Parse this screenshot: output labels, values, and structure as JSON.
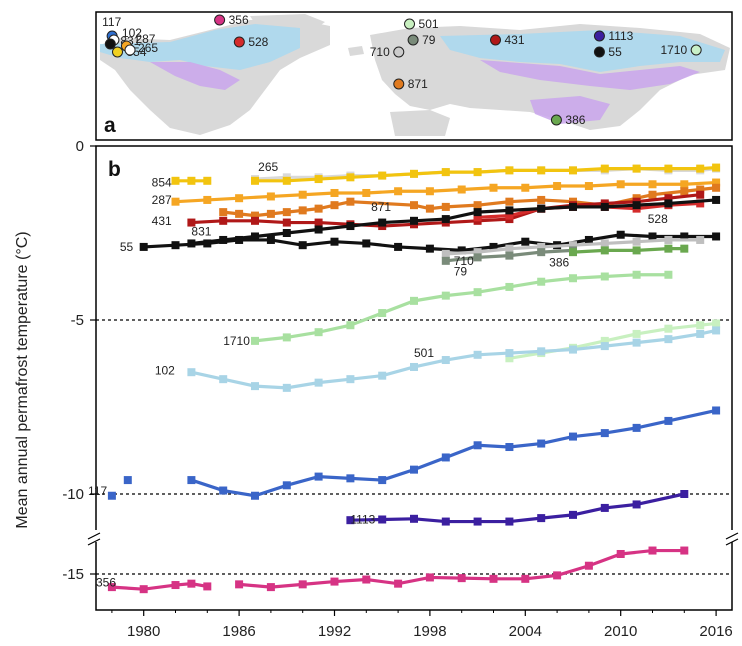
{
  "panel_a": {
    "letter": "a",
    "sites": [
      {
        "id": "117",
        "color": "#2f6fd0",
        "lon": -156,
        "lat": 72
      },
      {
        "id": "102",
        "color": "#ffffff",
        "lon": -155,
        "lat": 70
      },
      {
        "id": "831",
        "color": "#111111",
        "lon": -157,
        "lat": 68
      },
      {
        "id": "287",
        "color": "#f5a623",
        "lon": -148,
        "lat": 67
      },
      {
        "id": "854",
        "color": "#f0d020",
        "lon": -153,
        "lat": 64
      },
      {
        "id": "265",
        "color": "#ffffff",
        "lon": -146,
        "lat": 65
      },
      {
        "id": "356",
        "color": "#d63384",
        "lon": -96,
        "lat": 80
      },
      {
        "id": "528",
        "color": "#d42b2b",
        "lon": -85,
        "lat": 69
      },
      {
        "id": "501",
        "color": "#c8f0c0",
        "lon": 10,
        "lat": 78
      },
      {
        "id": "79",
        "color": "#7a8b7a",
        "lon": 12,
        "lat": 70
      },
      {
        "id": "710",
        "color": "#cccccc",
        "lon": 4,
        "lat": 64
      },
      {
        "id": "871",
        "color": "#e07a1f",
        "lon": 4,
        "lat": 48
      },
      {
        "id": "431",
        "color": "#b01818",
        "lon": 58,
        "lat": 70
      },
      {
        "id": "1113",
        "color": "#3b1fa0",
        "lon": 116,
        "lat": 72
      },
      {
        "id": "55",
        "color": "#111111",
        "lon": 116,
        "lat": 64
      },
      {
        "id": "1710",
        "color": "#c8f0c8",
        "lon": 170,
        "lat": 65
      },
      {
        "id": "386",
        "color": "#6aa84f",
        "lon": 92,
        "lat": 30
      }
    ]
  },
  "panel_b": {
    "letter": "b",
    "ylabel": "Mean annual permafrost temperature (°C)",
    "x_ticks": [
      "1980",
      "1986",
      "1992",
      "1998",
      "2004",
      "2010",
      "2016"
    ],
    "y_ticks": [
      "0",
      "-5",
      "-10",
      "-15"
    ],
    "series_labels": [
      {
        "text": "265",
        "x": 1987.2,
        "y": -0.6
      },
      {
        "text": "854",
        "x": 1980.5,
        "y": -1.05
      },
      {
        "text": "287",
        "x": 1980.5,
        "y": -1.55
      },
      {
        "text": "871",
        "x": 1994.3,
        "y": -1.75
      },
      {
        "text": "431",
        "x": 1980.5,
        "y": -2.15
      },
      {
        "text": "831",
        "x": 1983.0,
        "y": -2.45
      },
      {
        "text": "55",
        "x": 1978.5,
        "y": -2.9
      },
      {
        "text": "528",
        "x": 2011.7,
        "y": -2.1
      },
      {
        "text": "710",
        "x": 1999.5,
        "y": -3.3
      },
      {
        "text": "79",
        "x": 1999.5,
        "y": -3.6
      },
      {
        "text": "386",
        "x": 2005.5,
        "y": -3.35
      },
      {
        "text": "1710",
        "x": 1985.0,
        "y": -5.6
      },
      {
        "text": "501",
        "x": 1997.0,
        "y": -5.95
      },
      {
        "text": "102",
        "x": 1980.7,
        "y": -6.45
      },
      {
        "text": "117",
        "x": 1976.5,
        "y": -9.92
      },
      {
        "text": "1113",
        "x": 1993.0,
        "y": -11.05
      },
      {
        "text": "356",
        "x": 1977.0,
        "y": -15.6
      }
    ]
  },
  "chart_data": {
    "type": "line",
    "xlabel": "",
    "ylabel": "Mean annual permafrost temperature (°C)",
    "xlim": [
      1977,
      2017
    ],
    "ylim": [
      -16.8,
      0
    ],
    "y_axis_break": [
      -10.5,
      -11.5
    ],
    "x_ticks": [
      1980,
      1986,
      1992,
      1998,
      2004,
      2010,
      2016
    ],
    "y_ticks": [
      0,
      -5,
      -10,
      -15
    ],
    "reference_lines": [
      -5,
      -10,
      -15
    ],
    "series": [
      {
        "name": "265",
        "color": "#d9d9d9",
        "x": [
          1987,
          1989,
          1991,
          1993,
          1995,
          1997,
          1999,
          2001,
          2003,
          2005,
          2007,
          2009,
          2011,
          2013,
          2015,
          2016
        ],
        "y": [
          -0.95,
          -0.9,
          -0.9,
          -0.85,
          -0.85,
          -0.8,
          -0.75,
          -0.75,
          -0.7,
          -0.7,
          -0.7,
          -0.7,
          -0.65,
          -0.7,
          -0.7,
          -0.65
        ]
      },
      {
        "name": "854-a",
        "color": "#f2c40f",
        "x": [
          1982,
          1983,
          1984
        ],
        "y": [
          -1.0,
          -1.0,
          -1.0
        ]
      },
      {
        "name": "854-b",
        "color": "#f2c40f",
        "x": [
          1987,
          1989,
          1991,
          1993,
          1995,
          1997,
          1999,
          2001,
          2003,
          2005,
          2007,
          2009,
          2011,
          2013,
          2015,
          2016
        ],
        "y": [
          -1.0,
          -1.0,
          -0.95,
          -0.9,
          -0.85,
          -0.8,
          -0.75,
          -0.75,
          -0.7,
          -0.7,
          -0.7,
          -0.65,
          -0.65,
          -0.65,
          -0.65,
          -0.62
        ]
      },
      {
        "name": "287",
        "color": "#f5a623",
        "x": [
          1982,
          1984,
          1986,
          1988,
          1990,
          1992,
          1994,
          1996,
          1998,
          2000,
          2002,
          2004,
          2006,
          2008,
          2010,
          2012,
          2014,
          2016
        ],
        "y": [
          -1.6,
          -1.55,
          -1.5,
          -1.45,
          -1.4,
          -1.35,
          -1.35,
          -1.3,
          -1.3,
          -1.25,
          -1.2,
          -1.2,
          -1.15,
          -1.15,
          -1.1,
          -1.1,
          -1.1,
          -1.05
        ]
      },
      {
        "name": "871",
        "color": "#e07a1f",
        "x": [
          1985,
          1986,
          1987,
          1988,
          1989,
          1990,
          1991,
          1992,
          1993,
          1997,
          1998,
          1999,
          2001,
          2003,
          2005,
          2007,
          2009,
          2011,
          2012,
          2014,
          2015,
          2016
        ],
        "y": [
          -1.9,
          -1.95,
          -2.0,
          -1.95,
          -1.9,
          -1.85,
          -1.8,
          -1.7,
          -1.6,
          -1.7,
          -1.8,
          -1.75,
          -1.7,
          -1.6,
          -1.55,
          -1.6,
          -1.7,
          -1.5,
          -1.4,
          -1.3,
          -1.25,
          -1.2
        ]
      },
      {
        "name": "431",
        "color": "#b01818",
        "x": [
          1983,
          1985,
          1987,
          1989,
          1991,
          1993,
          1995,
          1997,
          1999,
          2001,
          2003,
          2005,
          2007,
          2009,
          2011,
          2013,
          2015
        ],
        "y": [
          -2.2,
          -2.15,
          -2.15,
          -2.2,
          -2.2,
          -2.25,
          -2.3,
          -2.25,
          -2.2,
          -2.15,
          -2.1,
          -1.8,
          -1.7,
          -1.65,
          -1.6,
          -1.5,
          -1.4
        ]
      },
      {
        "name": "528",
        "color": "#d42b2b",
        "x": [
          2001,
          2003,
          2005,
          2007,
          2009,
          2011,
          2013,
          2015
        ],
        "y": [
          -2.05,
          -2.0,
          -1.8,
          -1.75,
          -1.75,
          -1.8,
          -1.7,
          -1.65
        ]
      },
      {
        "name": "831",
        "color": "#111111",
        "x": [
          1983,
          1985,
          1987,
          1989,
          1991,
          1993,
          1995,
          1997,
          1999,
          2001,
          2003,
          2005,
          2007,
          2009,
          2011,
          2013,
          2016
        ],
        "y": [
          -2.8,
          -2.7,
          -2.6,
          -2.5,
          -2.4,
          -2.3,
          -2.2,
          -2.15,
          -2.1,
          -1.9,
          -1.85,
          -1.8,
          -1.75,
          -1.75,
          -1.7,
          -1.65,
          -1.55
        ]
      },
      {
        "name": "55",
        "color": "#111111",
        "x": [
          1980,
          1982,
          1984,
          1986,
          1988,
          1990,
          1992,
          1994,
          1996,
          1998,
          2000,
          2002,
          2004,
          2006,
          2008,
          2010,
          2012,
          2014,
          2016
        ],
        "y": [
          -2.9,
          -2.85,
          -2.8,
          -2.7,
          -2.7,
          -2.85,
          -2.75,
          -2.8,
          -2.9,
          -2.95,
          -3.0,
          -2.9,
          -2.75,
          -2.85,
          -2.7,
          -2.55,
          -2.6,
          -2.6,
          -2.6
        ]
      },
      {
        "name": "710",
        "color": "#bfbfbf",
        "x": [
          1999,
          2001,
          2003,
          2005,
          2007,
          2009,
          2011,
          2013,
          2015
        ],
        "y": [
          -3.1,
          -3.05,
          -2.95,
          -2.9,
          -2.85,
          -2.8,
          -2.75,
          -2.7,
          -2.7
        ]
      },
      {
        "name": "79",
        "color": "#7a8b7a",
        "x": [
          1999,
          2001,
          2003,
          2005,
          2007
        ],
        "y": [
          -3.3,
          -3.2,
          -3.15,
          -3.05,
          -3.0
        ]
      },
      {
        "name": "386",
        "color": "#6aa84f",
        "x": [
          2007,
          2009,
          2011,
          2013,
          2014
        ],
        "y": [
          -3.05,
          -3.0,
          -3.0,
          -2.95,
          -2.95
        ]
      },
      {
        "name": "1710",
        "color": "#a8e0a0",
        "x": [
          1987,
          1989,
          1991,
          1993,
          1995,
          1997,
          1999,
          2001,
          2003,
          2005,
          2007,
          2009,
          2011,
          2013
        ],
        "y": [
          -5.6,
          -5.5,
          -5.35,
          -5.15,
          -4.8,
          -4.45,
          -4.3,
          -4.2,
          -4.05,
          -3.9,
          -3.8,
          -3.75,
          -3.7,
          -3.7
        ]
      },
      {
        "name": "501",
        "color": "#c8f0c0",
        "x": [
          2003,
          2005,
          2007,
          2009,
          2011,
          2013,
          2015,
          2016
        ],
        "y": [
          -6.1,
          -5.95,
          -5.8,
          -5.6,
          -5.4,
          -5.25,
          -5.15,
          -5.1
        ]
      },
      {
        "name": "102",
        "color": "#a8d4e6",
        "x": [
          1983,
          1985,
          1987,
          1989,
          1991,
          1993,
          1995,
          1997,
          1999,
          2001,
          2003,
          2005,
          2007,
          2009,
          2011,
          2013,
          2015,
          2016
        ],
        "y": [
          -6.5,
          -6.7,
          -6.9,
          -6.95,
          -6.8,
          -6.7,
          -6.6,
          -6.35,
          -6.15,
          -6.0,
          -5.95,
          -5.9,
          -5.85,
          -5.75,
          -5.65,
          -5.55,
          -5.4,
          -5.3
        ]
      },
      {
        "name": "117-a",
        "color": "#3a65c8",
        "x": [
          1978
        ],
        "y": [
          -10.05
        ]
      },
      {
        "name": "117-b",
        "color": "#3a65c8",
        "x": [
          1979
        ],
        "y": [
          -9.6
        ]
      },
      {
        "name": "117-c",
        "color": "#3a65c8",
        "x": [
          1983,
          1985,
          1987,
          1989,
          1991,
          1993,
          1995,
          1997,
          1999,
          2001,
          2003,
          2005,
          2007,
          2009,
          2011,
          2013,
          2016
        ],
        "y": [
          -9.6,
          -9.9,
          -10.05,
          -9.75,
          -9.5,
          -9.55,
          -9.6,
          -9.3,
          -8.95,
          -8.6,
          -8.65,
          -8.55,
          -8.35,
          -8.25,
          -8.1,
          -7.9,
          -7.6
        ]
      },
      {
        "name": "1113",
        "color": "#3b1fa0",
        "x": [
          1993,
          1995,
          1997,
          1999,
          2001,
          2003,
          2005,
          2007,
          2009,
          2011,
          2014
        ],
        "y": [
          -11.1,
          -11.05,
          -11.0,
          -11.2,
          -11.2,
          -11.2,
          -10.95,
          -10.6,
          -10.4,
          -10.3,
          -10.0
        ]
      },
      {
        "name": "356-a",
        "color": "#d63384",
        "x": [
          1978,
          1980,
          1982,
          1983,
          1984
        ],
        "y": [
          -15.95,
          -16.1,
          -15.8,
          -15.7,
          -15.9
        ]
      },
      {
        "name": "356-b",
        "color": "#d63384",
        "x": [
          1986,
          1988,
          1990,
          1992,
          1994,
          1996,
          1998,
          2000,
          2002,
          2004,
          2006,
          2008,
          2010,
          2012,
          2014
        ],
        "y": [
          -15.75,
          -15.95,
          -15.75,
          -15.55,
          -15.4,
          -15.7,
          -15.25,
          -15.3,
          -15.35,
          -15.35,
          -15.1,
          -14.4,
          -13.55,
          -13.3,
          -13.3
        ]
      }
    ]
  }
}
